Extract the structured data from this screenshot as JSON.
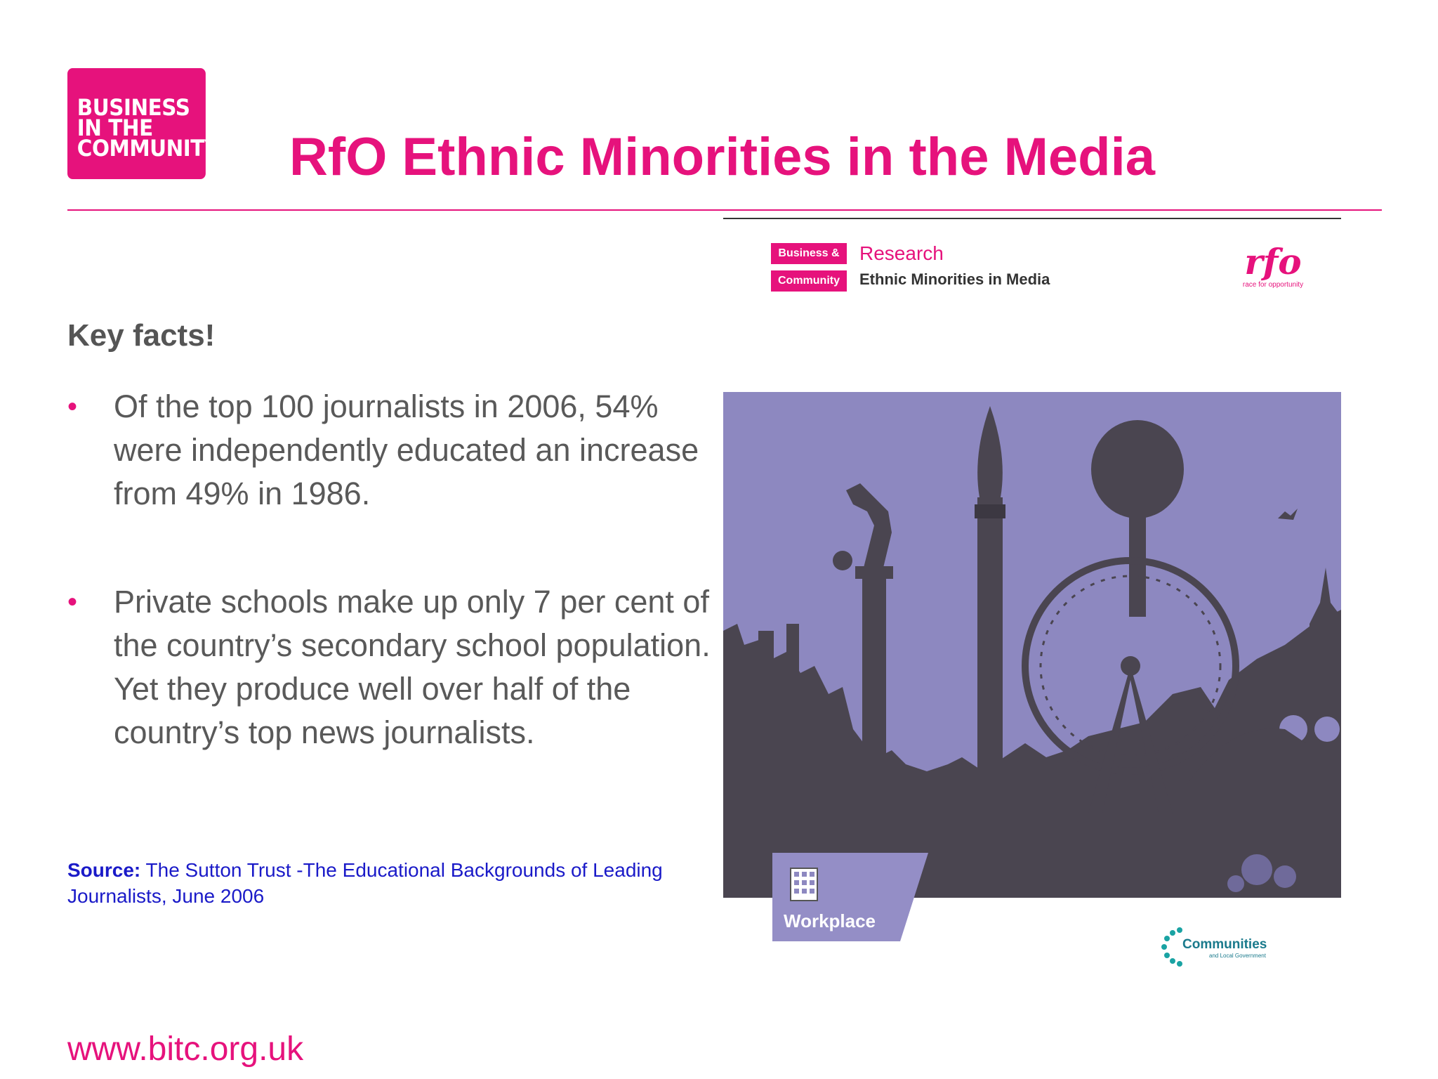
{
  "brand": {
    "logo_lines": [
      "BUSINESS",
      "IN THE",
      "COMMUNITY"
    ],
    "colors": {
      "accent": "#e6127c",
      "text": "#595959",
      "source": "#1a1ac8",
      "cover_bg": "#8d88c0"
    }
  },
  "slide": {
    "title": "RfO Ethnic Minorities in the Media",
    "heading": "Key facts!",
    "bullets": [
      "Of the top 100 journalists in 2006, 54% were independently educated an increase from 49% in 1986.",
      "Private schools make up only 7 per cent of the country’s secondary school population. Yet they produce well over half of the country’s top news journalists."
    ],
    "source_label": "Source:",
    "source_text": " The Sutton Trust -The Educational Backgrounds of Leading Journalists, June 2006",
    "url": "www.bitc.org.uk"
  },
  "report_cover": {
    "tag_top": "Business &",
    "tag_bottom": "Community",
    "series": "Research",
    "subtitle": "Ethnic Minorities in Media",
    "partner_mark": "rfo",
    "partner_tagline": "race for opportunity",
    "section_label": "Workplace",
    "funder_name": "Communities",
    "funder_sub": "and Local Government",
    "icons": [
      "building-icon",
      "london-skyline-illustration"
    ]
  }
}
